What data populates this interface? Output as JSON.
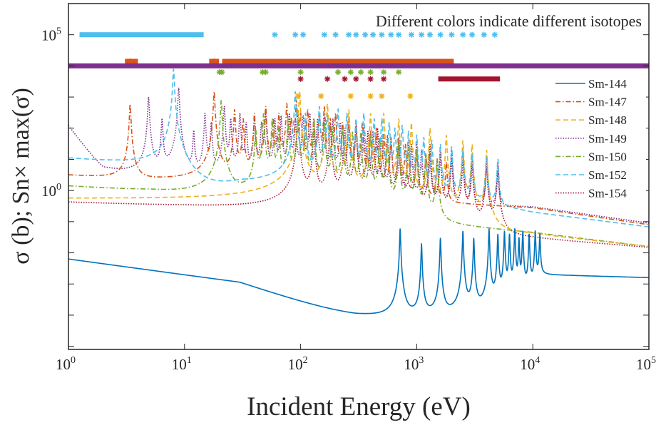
{
  "chart_data": {
    "type": "line",
    "annotation": "Different colors indicate different isotopes",
    "xlabel": "Incident Energy (eV)",
    "ylabel": "σ (b); Sn× max(σ)",
    "xscale": "log",
    "yscale": "log",
    "xlim": [
      1,
      100000
    ],
    "ylim_log10": [
      -5.1,
      6.0
    ],
    "x_ticks": [
      {
        "base": "10",
        "exp": "0",
        "value": 1
      },
      {
        "base": "10",
        "exp": "1",
        "value": 10
      },
      {
        "base": "10",
        "exp": "2",
        "value": 100
      },
      {
        "base": "10",
        "exp": "3",
        "value": 1000
      },
      {
        "base": "10",
        "exp": "4",
        "value": 10000
      },
      {
        "base": "10",
        "exp": "5",
        "value": 100000
      }
    ],
    "y_ticks": [
      {
        "base": "10",
        "exp": "5",
        "value": 100000
      },
      {
        "base": "10",
        "exp": "0",
        "value": 1
      }
    ],
    "legend_position": "right",
    "series": [
      {
        "name": "Sm-144",
        "color": "#0072BD",
        "dash": "solid",
        "width_frac": 0.008,
        "baseline": [
          [
            1,
            0.0063
          ],
          [
            30,
            0.0011
          ],
          [
            300,
            6e-05
          ],
          [
            700,
            3e-05
          ],
          [
            1000,
            4e-05
          ],
          [
            5000,
            3e-05
          ],
          [
            12000,
            0.002
          ],
          [
            100000,
            0.0016
          ]
        ],
        "resonances": [
          [
            720,
            0.06
          ],
          [
            1100,
            0.02
          ],
          [
            1600,
            0.03
          ],
          [
            2500,
            0.05
          ],
          [
            3100,
            0.03
          ],
          [
            4200,
            0.06
          ],
          [
            5000,
            0.04
          ],
          [
            5700,
            0.05
          ],
          [
            6300,
            0.04
          ],
          [
            7000,
            0.06
          ],
          [
            7600,
            0.03
          ],
          [
            8200,
            0.05
          ],
          [
            9300,
            0.04
          ],
          [
            10500,
            0.05
          ],
          [
            11500,
            0.04
          ]
        ],
        "marker_level": null,
        "markers": [],
        "marker_bands": []
      },
      {
        "name": "Sm-147",
        "color": "#D95319",
        "dash": "dashdot",
        "width_frac": 0.012,
        "baseline": [
          [
            1,
            1.8
          ],
          [
            3,
            1.1
          ],
          [
            10,
            0.85
          ],
          [
            100,
            0.6
          ],
          [
            1000,
            0.45
          ],
          [
            10000,
            0.28
          ],
          [
            100000,
            0.08
          ]
        ],
        "resonances": [
          [
            3.4,
            600
          ],
          [
            18,
            1500
          ],
          [
            27,
            400
          ],
          [
            32,
            200
          ],
          [
            40,
            300
          ],
          [
            50,
            500
          ],
          [
            58,
            200
          ],
          [
            65,
            300
          ],
          [
            76,
            600
          ],
          [
            83,
            200
          ],
          [
            92,
            800
          ],
          [
            100,
            300
          ],
          [
            115,
            400
          ],
          [
            130,
            200
          ],
          [
            145,
            300
          ],
          [
            160,
            500
          ],
          [
            180,
            200
          ],
          [
            200,
            300
          ],
          [
            230,
            150
          ],
          [
            260,
            200
          ],
          [
            300,
            100
          ],
          [
            340,
            150
          ],
          [
            400,
            80
          ],
          [
            450,
            100
          ],
          [
            520,
            60
          ],
          [
            600,
            50
          ],
          [
            700,
            40
          ],
          [
            800,
            30
          ],
          [
            1000,
            20
          ],
          [
            1200,
            15
          ],
          [
            1500,
            10
          ],
          [
            1800,
            8
          ]
        ],
        "marker_level": 14000,
        "markers": [
          3.4,
          18
        ],
        "marker_bands": [
          [
            3.2,
            3.8
          ],
          [
            17,
            19
          ],
          [
            22,
            2000
          ]
        ]
      },
      {
        "name": "Sm-148",
        "color": "#EDB120",
        "dash": "dashed",
        "width_frac": 0.012,
        "baseline": [
          [
            1,
            0.035
          ],
          [
            10,
            0.022
          ],
          [
            60,
            0.011
          ],
          [
            300,
            0.02
          ],
          [
            3000,
            0.04
          ],
          [
            10000,
            0.04
          ],
          [
            100000,
            0.016
          ]
        ],
        "resonances": [
          [
            98,
            1500
          ],
          [
            170,
            600
          ],
          [
            260,
            400
          ],
          [
            400,
            300
          ],
          [
            520,
            300
          ],
          [
            700,
            200
          ],
          [
            900,
            150
          ],
          [
            1300,
            100
          ],
          [
            1800,
            60
          ],
          [
            2500,
            40
          ],
          [
            3000,
            30
          ],
          [
            4000,
            20
          ]
        ],
        "marker_level": 1070,
        "markers": [
          95,
          150,
          270,
          400,
          500,
          880
        ],
        "marker_bands": []
      },
      {
        "name": "Sm-149",
        "color": "#7E2F8E",
        "dash": "dotted",
        "width_frac": 0.012,
        "baseline": [
          [
            1,
            120
          ],
          [
            2,
            4
          ],
          [
            3,
            2.5
          ],
          [
            10,
            1.5
          ],
          [
            100,
            0.6
          ],
          [
            1000,
            0.4
          ],
          [
            10000,
            0.3
          ],
          [
            100000,
            0.09
          ]
        ],
        "resonances": [
          [
            4.9,
            1000
          ],
          [
            6.4,
            200
          ],
          [
            8.9,
            2000
          ],
          [
            12,
            80
          ],
          [
            15,
            300
          ],
          [
            17,
            150
          ],
          [
            22,
            500
          ],
          [
            25,
            200
          ],
          [
            30,
            300
          ],
          [
            34,
            150
          ],
          [
            40,
            200
          ],
          [
            46,
            150
          ],
          [
            50,
            300
          ],
          [
            60,
            200
          ],
          [
            68,
            250
          ],
          [
            80,
            300
          ],
          [
            90,
            200
          ],
          [
            105,
            250
          ],
          [
            120,
            300
          ],
          [
            140,
            200
          ],
          [
            160,
            250
          ],
          [
            190,
            200
          ],
          [
            220,
            150
          ],
          [
            260,
            150
          ],
          [
            300,
            120
          ],
          [
            350,
            100
          ],
          [
            420,
            80
          ],
          [
            500,
            60
          ],
          [
            600,
            50
          ],
          [
            720,
            40
          ],
          [
            900,
            30
          ],
          [
            1100,
            20
          ],
          [
            1300,
            15
          ],
          [
            1600,
            12
          ],
          [
            2000,
            10
          ],
          [
            2500,
            8
          ],
          [
            3000,
            6
          ],
          [
            4000,
            5
          ],
          [
            5000,
            4
          ]
        ],
        "marker_level": 10000,
        "markers": [],
        "marker_bands": [
          [
            1,
            100000
          ]
        ]
      },
      {
        "name": "Sm-150",
        "color": "#77AC30",
        "dash": "dashdot",
        "width_frac": 0.012,
        "baseline": [
          [
            1,
            0.95
          ],
          [
            5,
            0.55
          ],
          [
            15,
            0.25
          ],
          [
            100,
            0.12
          ],
          [
            1000,
            0.1
          ],
          [
            10000,
            0.045
          ],
          [
            100000,
            0.016
          ]
        ],
        "resonances": [
          [
            20.7,
            800
          ],
          [
            41,
            100
          ],
          [
            48,
            300
          ],
          [
            57,
            200
          ],
          [
            65,
            100
          ],
          [
            78,
            200
          ],
          [
            95,
            300
          ],
          [
            110,
            150
          ],
          [
            130,
            200
          ],
          [
            160,
            150
          ],
          [
            190,
            120
          ],
          [
            230,
            100
          ],
          [
            280,
            80
          ],
          [
            330,
            70
          ],
          [
            400,
            60
          ],
          [
            480,
            50
          ],
          [
            560,
            40
          ],
          [
            700,
            30
          ],
          [
            850,
            25
          ],
          [
            1000,
            20
          ],
          [
            1200,
            15
          ],
          [
            1500,
            10
          ]
        ],
        "marker_level": 6300,
        "markers": [
          20,
          21,
          47,
          50,
          100,
          210,
          270,
          330,
          400,
          520,
          700
        ],
        "marker_bands": []
      },
      {
        "name": "Sm-152",
        "color": "#4DBEEE",
        "dash": "dashed",
        "width_frac": 0.012,
        "baseline": [
          [
            1,
            9
          ],
          [
            5,
            5
          ],
          [
            7.5,
            3
          ],
          [
            12,
            0.3
          ],
          [
            30,
            1
          ],
          [
            1000,
            1
          ],
          [
            10000,
            0.2
          ],
          [
            100000,
            0.068
          ]
        ],
        "resonances": [
          [
            8.04,
            8000
          ],
          [
            90,
            1500
          ],
          [
            110,
            300
          ],
          [
            145,
            500
          ],
          [
            170,
            300
          ],
          [
            210,
            400
          ],
          [
            250,
            300
          ],
          [
            300,
            200
          ],
          [
            350,
            300
          ],
          [
            430,
            200
          ],
          [
            500,
            200
          ],
          [
            580,
            150
          ],
          [
            650,
            100
          ],
          [
            750,
            120
          ],
          [
            850,
            80
          ],
          [
            1000,
            60
          ],
          [
            1150,
            50
          ],
          [
            1350,
            40
          ],
          [
            1600,
            30
          ],
          [
            2000,
            25
          ],
          [
            2500,
            20
          ],
          [
            3000,
            15
          ],
          [
            4000,
            12
          ],
          [
            5000,
            10
          ]
        ],
        "marker_level": 100000,
        "markers": [
          60,
          90,
          105,
          160,
          200,
          260,
          300,
          360,
          420,
          500,
          600,
          700,
          900,
          1100,
          1300,
          1600,
          2000,
          2500,
          3000,
          3800,
          4700
        ],
        "marker_bands": [
          [
            1.3,
            14
          ]
        ]
      },
      {
        "name": "Sm-154",
        "color": "#A2142F",
        "dash": "dotted",
        "width_frac": 0.012,
        "baseline": [
          [
            1,
            0.25
          ],
          [
            10,
            0.15
          ],
          [
            100,
            0.07
          ],
          [
            1000,
            0.05
          ],
          [
            10000,
            0.03
          ],
          [
            100000,
            0.015
          ]
        ],
        "resonances": [
          [
            95,
            300
          ],
          [
            130,
            100
          ],
          [
            180,
            150
          ],
          [
            240,
            100
          ],
          [
            300,
            120
          ],
          [
            380,
            80
          ],
          [
            460,
            100
          ],
          [
            560,
            60
          ],
          [
            700,
            50
          ],
          [
            850,
            40
          ],
          [
            1000,
            35
          ],
          [
            1300,
            30
          ],
          [
            1600,
            20
          ],
          [
            2000,
            20
          ],
          [
            2500,
            15
          ],
          [
            3000,
            12
          ],
          [
            4000,
            10
          ],
          [
            5000,
            8
          ]
        ],
        "marker_level": 3800,
        "markers": [
          100,
          170,
          240,
          300,
          400,
          520
        ],
        "marker_bands": [
          [
            1600,
            5000
          ]
        ]
      }
    ]
  }
}
